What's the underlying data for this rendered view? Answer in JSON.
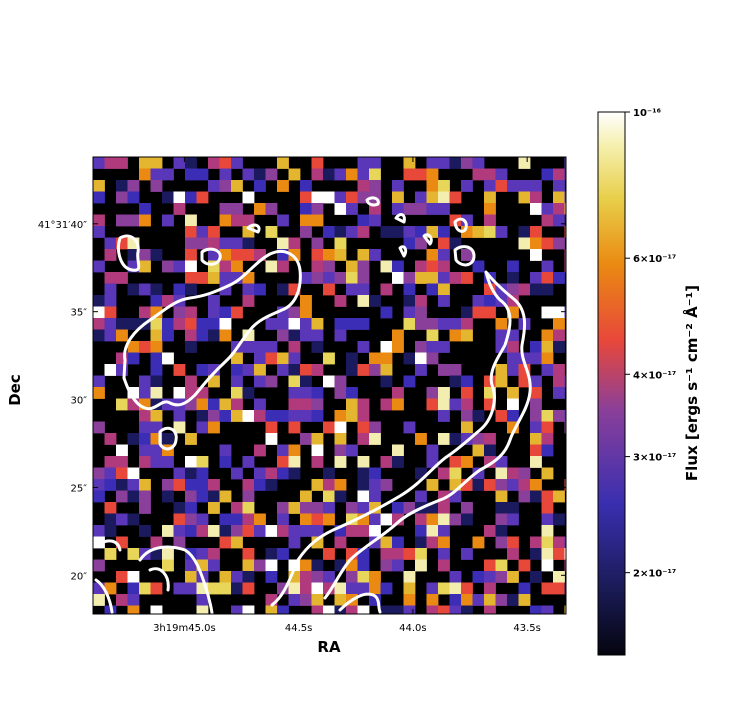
{
  "chart_data": {
    "type": "heatmap",
    "title": "",
    "xlabel": "RA",
    "ylabel": "Dec",
    "x_axis": {
      "ticks": [
        {
          "value": 45.0,
          "label": "3h19m45.0s"
        },
        {
          "value": 44.5,
          "label": "44.5s"
        },
        {
          "value": 44.0,
          "label": "44.0s"
        },
        {
          "value": 43.5,
          "label": "43.5s"
        }
      ],
      "range": [
        45.4,
        43.33
      ],
      "direction": "decreasing-right"
    },
    "y_axis": {
      "ticks": [
        {
          "value": 40,
          "label": "41°31′40″"
        },
        {
          "value": 35,
          "label": "35″"
        },
        {
          "value": 30,
          "label": "30″"
        },
        {
          "value": 25,
          "label": "25″"
        },
        {
          "value": 20,
          "label": "20″"
        }
      ],
      "range": [
        17.8,
        43.8
      ]
    },
    "colorbar": {
      "label": "Flux [ergs s⁻¹ cm⁻² Å⁻¹]",
      "scale": "log",
      "colormap": "CMRmap",
      "range": [
        1.5e-17,
        1e-16
      ],
      "ticks": [
        {
          "value": 1e-16,
          "label": "10⁻¹⁶"
        },
        {
          "value": 6e-17,
          "label": "6×10⁻¹⁷"
        },
        {
          "value": 4e-17,
          "label": "4×10⁻¹⁷"
        },
        {
          "value": 3e-17,
          "label": "3×10⁻¹⁷"
        },
        {
          "value": 2e-17,
          "label": "2×10⁻¹⁷"
        }
      ]
    },
    "contour_color": "#ffffff",
    "grid": false
  }
}
